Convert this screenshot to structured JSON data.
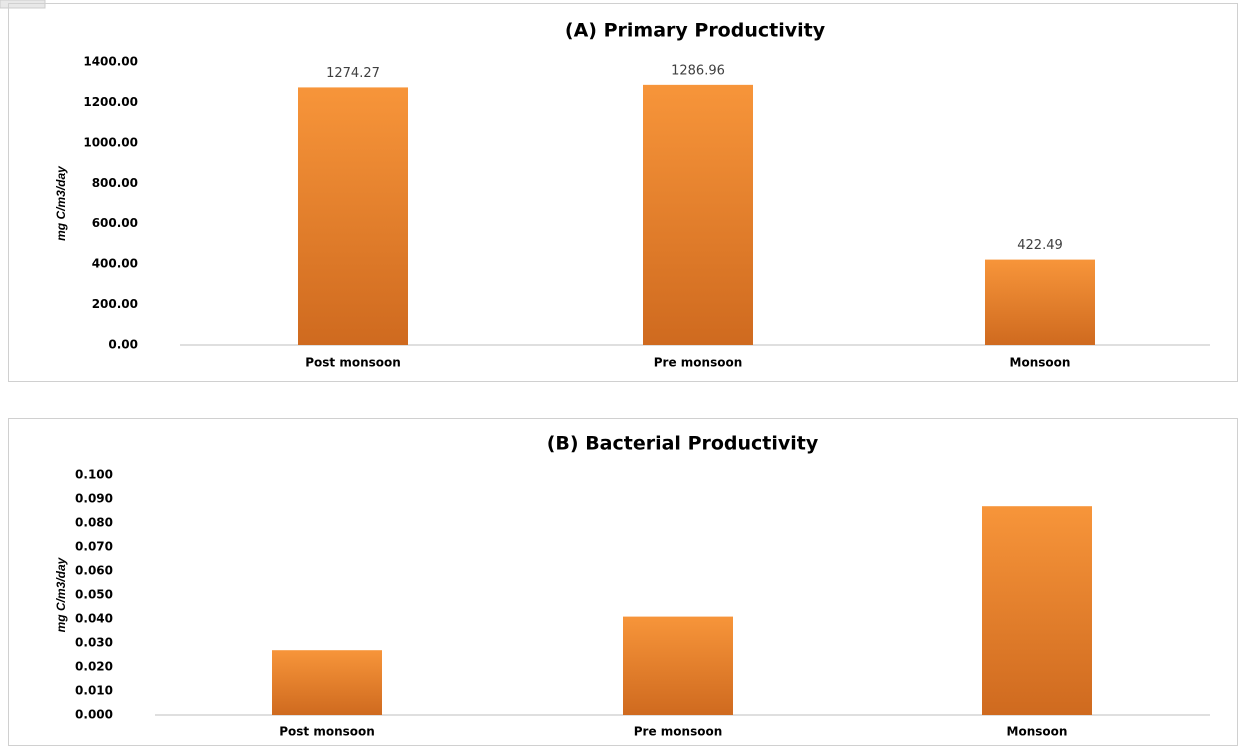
{
  "chart_data": [
    {
      "type": "bar",
      "title": "(A) Primary Productivity",
      "y_label": "mg C/m3/day",
      "categories": [
        "Post monsoon",
        "Pre monsoon",
        "Monsoon"
      ],
      "values": [
        1274.27,
        1286.96,
        422.49
      ],
      "show_value_labels": true,
      "color": "#f7953a",
      "ylim": [
        0,
        1400
      ],
      "yticks": [
        {
          "value": 0,
          "label": "0.00"
        },
        {
          "value": 200,
          "label": "200.00"
        },
        {
          "value": 400,
          "label": "400.00"
        },
        {
          "value": 600,
          "label": "600.00"
        },
        {
          "value": 800,
          "label": "800.00"
        },
        {
          "value": 1000,
          "label": "1000.00"
        },
        {
          "value": 1200,
          "label": "1200.00"
        },
        {
          "value": 1400,
          "label": "1400.00"
        }
      ],
      "grid": false
    },
    {
      "type": "bar",
      "title": "(B) Bacterial Productivity",
      "y_label": "mg C/m3/day",
      "categories": [
        "Post monsoon",
        "Pre monsoon",
        "Monsoon"
      ],
      "values": [
        0.027,
        0.041,
        0.087
      ],
      "show_value_labels": false,
      "color": "#f7953a",
      "ylim": [
        0,
        0.1
      ],
      "yticks": [
        {
          "value": 0,
          "label": "0.000"
        },
        {
          "value": 0.01,
          "label": "0.010"
        },
        {
          "value": 0.02,
          "label": "0.020"
        },
        {
          "value": 0.03,
          "label": "0.030"
        },
        {
          "value": 0.04,
          "label": "0.040"
        },
        {
          "value": 0.05,
          "label": "0.050"
        },
        {
          "value": 0.06,
          "label": "0.060"
        },
        {
          "value": 0.07,
          "label": "0.070"
        },
        {
          "value": 0.08,
          "label": "0.080"
        },
        {
          "value": 0.09,
          "label": "0.090"
        },
        {
          "value": 0.1,
          "label": "0.100"
        }
      ],
      "grid": false
    }
  ]
}
